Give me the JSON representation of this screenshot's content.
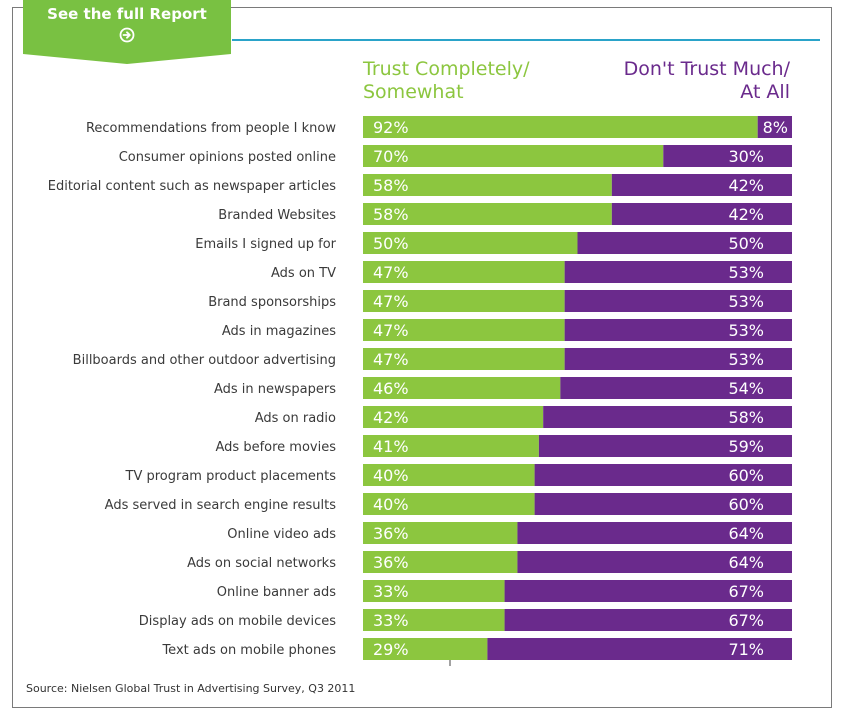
{
  "report_button": {
    "label": "See the full Report",
    "icon": "arrow-right-circle-icon"
  },
  "colors": {
    "trust": "#8cc63f",
    "distrust": "#6a2a8c",
    "tab": "#79c142",
    "accent_line": "#2aa3c9"
  },
  "chart_data": {
    "type": "bar",
    "stacked": true,
    "orientation": "horizontal",
    "xlim": [
      0,
      100
    ],
    "categories": [
      "Recommendations from people I know",
      "Consumer opinions posted online",
      "Editorial content such as newspaper articles",
      "Branded Websites",
      "Emails I signed up for",
      "Ads on TV",
      "Brand sponsorships",
      "Ads in magazines",
      "Billboards and other outdoor advertising",
      "Ads in newspapers",
      "Ads on radio",
      "Ads before movies",
      "TV program product placements",
      "Ads served in search engine results",
      "Online video ads",
      "Ads on social networks",
      "Online banner ads",
      "Display ads on mobile devices",
      "Text ads on mobile phones"
    ],
    "series": [
      {
        "name": "Trust Completely/ Somewhat",
        "values": [
          92,
          70,
          58,
          58,
          50,
          47,
          47,
          47,
          47,
          46,
          42,
          41,
          40,
          40,
          36,
          36,
          33,
          33,
          29
        ]
      },
      {
        "name": "Don't Trust Much/ At All",
        "values": [
          8,
          30,
          42,
          42,
          50,
          53,
          53,
          53,
          53,
          54,
          58,
          59,
          60,
          60,
          64,
          64,
          67,
          67,
          71
        ]
      }
    ],
    "legend": {
      "trust_line1": "Trust Completely/",
      "trust_line2": "Somewhat",
      "distrust_line1": "Don't Trust Much/",
      "distrust_line2": "At All"
    },
    "source": "Source: Nielsen Global Trust in Advertising Survey, Q3 2011"
  }
}
